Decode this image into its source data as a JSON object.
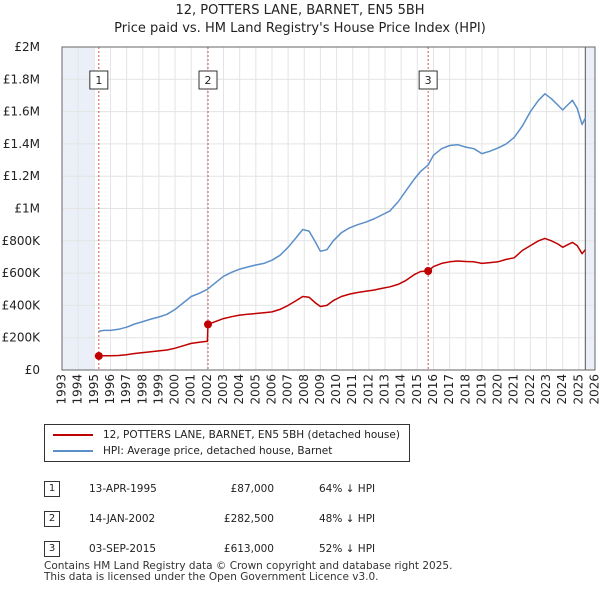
{
  "header": {
    "title": "12, POTTERS LANE, BARNET, EN5 5BH",
    "subtitle": "Price paid vs. HM Land Registry's House Price Index (HPI)"
  },
  "chart_data": {
    "type": "line",
    "xlim": [
      1993,
      2026
    ],
    "ylim": [
      0,
      2000000
    ],
    "y_ticks": [
      0,
      200000,
      400000,
      600000,
      800000,
      1000000,
      1200000,
      1400000,
      1600000,
      1800000,
      2000000
    ],
    "y_tick_labels": [
      "£0",
      "£200K",
      "£400K",
      "£600K",
      "£800K",
      "£1M",
      "£1.2M",
      "£1.4M",
      "£1.6M",
      "£1.8M",
      "£2M"
    ],
    "x_ticks": [
      1993,
      1994,
      1995,
      1996,
      1997,
      1998,
      1999,
      2000,
      2001,
      2002,
      2003,
      2004,
      2005,
      2006,
      2007,
      2008,
      2009,
      2010,
      2011,
      2012,
      2013,
      2014,
      2015,
      2016,
      2017,
      2018,
      2019,
      2020,
      2021,
      2022,
      2023,
      2024,
      2025,
      2026
    ],
    "data_end": 2025.4,
    "colors": {
      "property": "#c00000",
      "hpi": "#5b8fc9",
      "marker": "#c00000",
      "vline": "#d05050",
      "shade": "#dde6f3",
      "grid": "#e4e4e4"
    },
    "series": [
      {
        "name": "12, POTTERS LANE, BARNET, EN5 5BH (detached house)",
        "points": [
          [
            1995.28,
            87000
          ],
          [
            1995.6,
            88000
          ],
          [
            1996.0,
            88000
          ],
          [
            1996.5,
            90000
          ],
          [
            1997.0,
            95000
          ],
          [
            1997.5,
            102000
          ],
          [
            1998.0,
            108000
          ],
          [
            1998.5,
            113000
          ],
          [
            1999.0,
            118000
          ],
          [
            1999.5,
            124000
          ],
          [
            2000.0,
            135000
          ],
          [
            2000.5,
            150000
          ],
          [
            2001.0,
            165000
          ],
          [
            2001.5,
            172000
          ],
          [
            2002.0,
            178000
          ],
          [
            2002.04,
            282500
          ],
          [
            2002.5,
            300000
          ],
          [
            2003.0,
            318000
          ],
          [
            2003.5,
            330000
          ],
          [
            2004.0,
            340000
          ],
          [
            2004.5,
            345000
          ],
          [
            2005.0,
            350000
          ],
          [
            2005.5,
            355000
          ],
          [
            2006.0,
            360000
          ],
          [
            2006.5,
            375000
          ],
          [
            2007.0,
            400000
          ],
          [
            2007.5,
            430000
          ],
          [
            2007.9,
            455000
          ],
          [
            2008.3,
            450000
          ],
          [
            2008.7,
            415000
          ],
          [
            2009.0,
            393000
          ],
          [
            2009.4,
            400000
          ],
          [
            2009.8,
            430000
          ],
          [
            2010.3,
            455000
          ],
          [
            2010.8,
            470000
          ],
          [
            2011.3,
            480000
          ],
          [
            2011.8,
            488000
          ],
          [
            2012.3,
            495000
          ],
          [
            2012.8,
            505000
          ],
          [
            2013.3,
            515000
          ],
          [
            2013.8,
            530000
          ],
          [
            2014.3,
            555000
          ],
          [
            2014.8,
            590000
          ],
          [
            2015.2,
            610000
          ],
          [
            2015.67,
            613000
          ],
          [
            2016.0,
            640000
          ],
          [
            2016.5,
            660000
          ],
          [
            2017.0,
            670000
          ],
          [
            2017.5,
            675000
          ],
          [
            2018.0,
            672000
          ],
          [
            2018.5,
            670000
          ],
          [
            2019.0,
            660000
          ],
          [
            2019.5,
            665000
          ],
          [
            2020.0,
            670000
          ],
          [
            2020.5,
            685000
          ],
          [
            2021.0,
            695000
          ],
          [
            2021.5,
            740000
          ],
          [
            2022.0,
            770000
          ],
          [
            2022.5,
            800000
          ],
          [
            2022.9,
            815000
          ],
          [
            2023.3,
            800000
          ],
          [
            2023.7,
            780000
          ],
          [
            2024.0,
            760000
          ],
          [
            2024.3,
            775000
          ],
          [
            2024.6,
            790000
          ],
          [
            2024.9,
            770000
          ],
          [
            2025.2,
            720000
          ],
          [
            2025.4,
            745000
          ]
        ]
      },
      {
        "name": "HPI: Average price, detached house, Barnet",
        "points": [
          [
            1995.28,
            240000
          ],
          [
            1995.6,
            245000
          ],
          [
            1996.0,
            245000
          ],
          [
            1996.5,
            252000
          ],
          [
            1997.0,
            265000
          ],
          [
            1997.5,
            285000
          ],
          [
            1998.0,
            300000
          ],
          [
            1998.5,
            315000
          ],
          [
            1999.0,
            328000
          ],
          [
            1999.5,
            345000
          ],
          [
            2000.0,
            375000
          ],
          [
            2000.5,
            415000
          ],
          [
            2001.0,
            455000
          ],
          [
            2001.5,
            475000
          ],
          [
            2002.0,
            500000
          ],
          [
            2002.5,
            540000
          ],
          [
            2003.0,
            580000
          ],
          [
            2003.5,
            605000
          ],
          [
            2004.0,
            625000
          ],
          [
            2004.5,
            638000
          ],
          [
            2005.0,
            650000
          ],
          [
            2005.5,
            660000
          ],
          [
            2006.0,
            680000
          ],
          [
            2006.5,
            710000
          ],
          [
            2007.0,
            760000
          ],
          [
            2007.5,
            820000
          ],
          [
            2007.9,
            870000
          ],
          [
            2008.3,
            860000
          ],
          [
            2008.7,
            790000
          ],
          [
            2009.0,
            735000
          ],
          [
            2009.4,
            745000
          ],
          [
            2009.8,
            800000
          ],
          [
            2010.3,
            850000
          ],
          [
            2010.8,
            880000
          ],
          [
            2011.3,
            900000
          ],
          [
            2011.8,
            915000
          ],
          [
            2012.3,
            935000
          ],
          [
            2012.8,
            960000
          ],
          [
            2013.3,
            985000
          ],
          [
            2013.8,
            1040000
          ],
          [
            2014.3,
            1110000
          ],
          [
            2014.8,
            1180000
          ],
          [
            2015.2,
            1230000
          ],
          [
            2015.67,
            1270000
          ],
          [
            2016.0,
            1330000
          ],
          [
            2016.5,
            1370000
          ],
          [
            2017.0,
            1390000
          ],
          [
            2017.5,
            1395000
          ],
          [
            2018.0,
            1380000
          ],
          [
            2018.5,
            1370000
          ],
          [
            2019.0,
            1340000
          ],
          [
            2019.5,
            1355000
          ],
          [
            2020.0,
            1375000
          ],
          [
            2020.5,
            1400000
          ],
          [
            2021.0,
            1440000
          ],
          [
            2021.5,
            1510000
          ],
          [
            2022.0,
            1600000
          ],
          [
            2022.5,
            1670000
          ],
          [
            2022.9,
            1710000
          ],
          [
            2023.3,
            1680000
          ],
          [
            2023.7,
            1640000
          ],
          [
            2024.0,
            1610000
          ],
          [
            2024.3,
            1640000
          ],
          [
            2024.6,
            1670000
          ],
          [
            2024.9,
            1620000
          ],
          [
            2025.2,
            1520000
          ],
          [
            2025.4,
            1560000
          ]
        ]
      }
    ],
    "sales": [
      {
        "label": "1",
        "x": 1995.28,
        "y": 87000
      },
      {
        "label": "2",
        "x": 2002.04,
        "y": 282500
      },
      {
        "label": "3",
        "x": 2015.67,
        "y": 613000
      }
    ]
  },
  "legend": {
    "items": [
      {
        "label": "12, POTTERS LANE, BARNET, EN5 5BH (detached house)"
      },
      {
        "label": "HPI: Average price, detached house, Barnet"
      }
    ]
  },
  "sales_table": [
    {
      "num": "1",
      "date": "13-APR-1995",
      "price": "£87,000",
      "hpi": "64% ↓ HPI"
    },
    {
      "num": "2",
      "date": "14-JAN-2002",
      "price": "£282,500",
      "hpi": "48% ↓ HPI"
    },
    {
      "num": "3",
      "date": "03-SEP-2015",
      "price": "£613,000",
      "hpi": "52% ↓ HPI"
    }
  ],
  "footer": {
    "line1": "Contains HM Land Registry data © Crown copyright and database right 2025.",
    "line2": "This data is licensed under the Open Government Licence v3.0."
  }
}
